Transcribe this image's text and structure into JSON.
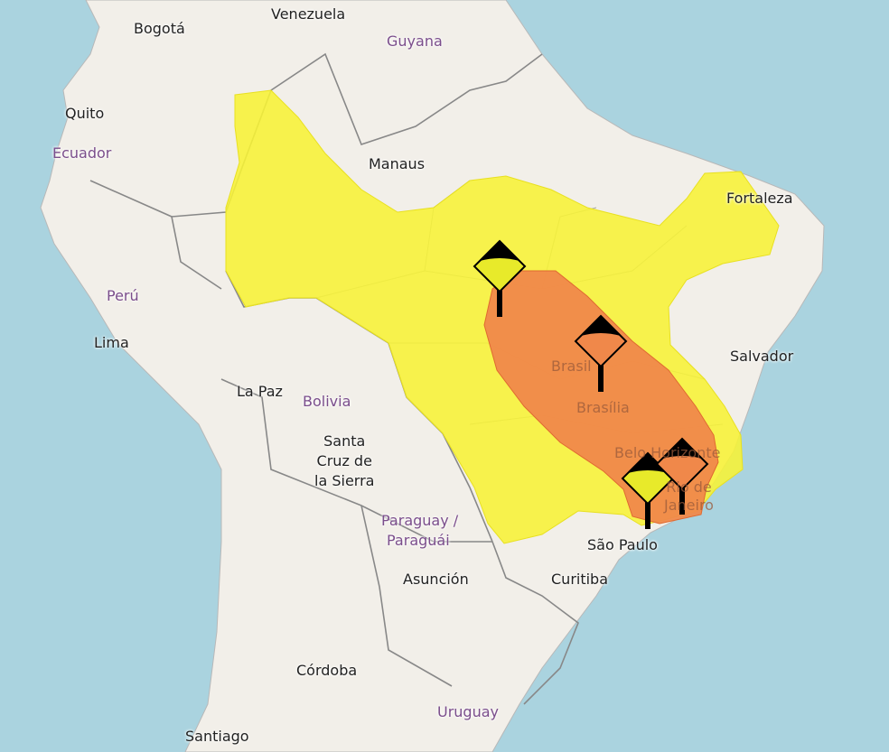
{
  "map": {
    "colors": {
      "ocean": "#aad3df",
      "land": "#f2efe9",
      "border": "#8c8c8c",
      "yellow_alert": "#f7f336",
      "orange_alert": "#f0884a"
    },
    "labels": {
      "venezuela": "Venezuela",
      "bogota": "Bogotá",
      "guyana": "Guyana",
      "quito": "Quito",
      "ecuador": "Ecuador",
      "manaus": "Manaus",
      "fortaleza": "Fortaleza",
      "peru": "Perú",
      "lima": "Lima",
      "salvador": "Salvador",
      "la_paz": "La Paz",
      "bolivia": "Bolivia",
      "santa_cruz": "Santa\nCruz de\nla Sierra",
      "brasil": "Brasil",
      "brasilia": "Brasília",
      "belo_horizonte": "Belo Horizonte",
      "rio": "Rio de\nJaneiro",
      "paraguay": "Paraguay /",
      "paraguai": "Paraguái",
      "sao_paulo": "São Paulo",
      "asuncion": "Asunción",
      "curitiba": "Curitiba",
      "cordoba": "Córdoba",
      "uruguay": "Uruguay",
      "santiago": "Santiago"
    },
    "alert_markers": [
      {
        "level": "yellow",
        "icon": "storm-warning-icon"
      },
      {
        "level": "orange",
        "icon": "storm-warning-icon"
      },
      {
        "level": "yellow",
        "icon": "storm-warning-icon"
      },
      {
        "level": "orange",
        "icon": "storm-warning-icon"
      }
    ]
  }
}
